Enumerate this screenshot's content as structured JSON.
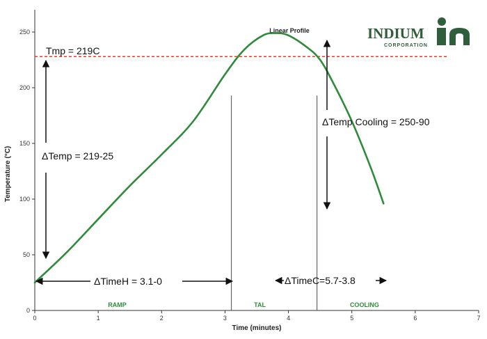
{
  "chart_data": {
    "type": "line",
    "title": "Linear Profile",
    "xlabel": "Time (minutes)",
    "ylabel": "Temperature (°C)",
    "xlim": [
      0,
      7
    ],
    "ylim": [
      0,
      270
    ],
    "x_ticks": [
      "0",
      "1",
      "2",
      "3",
      "4",
      "5",
      "6",
      "7"
    ],
    "y_ticks": [
      "0",
      "50",
      "100",
      "150",
      "200",
      "250"
    ],
    "grid": false,
    "series": [
      {
        "color": "#2e8b3a",
        "x": [
          0,
          0.5,
          1.0,
          1.5,
          2.0,
          2.5,
          3.0,
          3.3,
          3.6,
          3.8,
          4.0,
          4.3,
          4.5,
          4.7,
          5.0,
          5.3,
          5.5
        ],
        "y": [
          25,
          52,
          82,
          112,
          140,
          170,
          212,
          234,
          247,
          249,
          247,
          236,
          225,
          205,
          170,
          128,
          96
        ]
      }
    ],
    "reference_lines": [
      {
        "orientation": "horizontal",
        "value": 228,
        "color": "#e8402a",
        "style": "dashed"
      },
      {
        "orientation": "vertical",
        "value": 3.1,
        "y_from": 0,
        "y_to": 193,
        "color": "#666666"
      },
      {
        "orientation": "vertical",
        "value": 4.45,
        "y_from": 0,
        "y_to": 193,
        "color": "#666666"
      }
    ],
    "zones": [
      {
        "label": "RAMP",
        "x": 1.3
      },
      {
        "label": "TAL",
        "x": 3.55
      },
      {
        "label": "COOLING",
        "x": 5.2
      }
    ],
    "annotations": {
      "tmp": "Tmp = 219C",
      "delta_temp": "ΔTemp = 219-25",
      "delta_temp_cooling": "ΔTemp Cooling  = 250-90",
      "delta_time_h": "ΔTimeH = 3.1-0",
      "delta_time_c": "ΔTimeC=5.7-3.8"
    }
  },
  "logo": {
    "name": "INDIUM",
    "sub": "CORPORATION",
    "color": "#2f5e3a",
    "icon": "indium-logo-icon"
  }
}
